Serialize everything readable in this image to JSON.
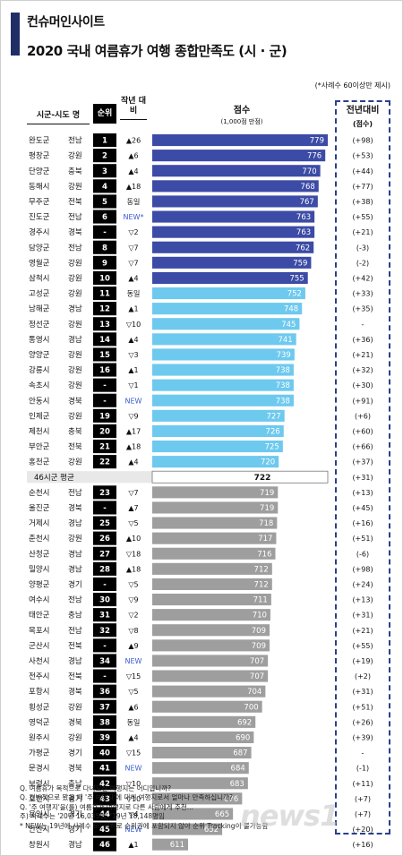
{
  "header": {
    "brand": "컨슈머인사이트",
    "title": "2020 국내 여름휴가 여행 종합만족도 (시 · 군)",
    "note": "(*사례수 60이상만 제시)",
    "col_region": "시군-시도 명",
    "col_rank": "순위",
    "col_prev": "작년 대비",
    "col_score": "점수",
    "col_score_sub": "(1,000점 만점)",
    "col_diff": "전년대비",
    "col_diff_sub": "(점수)"
  },
  "colors": {
    "accent": "#1f2f66",
    "top10": "#3c4ba6",
    "mid": "#6ec9ee",
    "low": "#9e9e9e",
    "avg_box": "#ffffff"
  },
  "chart_data": {
    "type": "bar",
    "title": "2020 국내 여름휴가 여행 종합만족도 (시 · 군)",
    "xlabel": "",
    "ylabel": "",
    "value_label": "점수 (1,000점 만점)",
    "rows": [
      {
        "city": "완도군",
        "prov": "전남",
        "rank": "1",
        "prev": "▲26",
        "score": 779,
        "diff": "(+98)",
        "tier": "top"
      },
      {
        "city": "평창군",
        "prov": "강원",
        "rank": "2",
        "prev": "▲6",
        "score": 776,
        "diff": "(+53)",
        "tier": "top"
      },
      {
        "city": "단양군",
        "prov": "충북",
        "rank": "3",
        "prev": "▲4",
        "score": 770,
        "diff": "(+44)",
        "tier": "top"
      },
      {
        "city": "동해시",
        "prov": "강원",
        "rank": "4",
        "prev": "▲18",
        "score": 768,
        "diff": "(+77)",
        "tier": "top"
      },
      {
        "city": "무주군",
        "prov": "전북",
        "rank": "5",
        "prev": "동일",
        "score": 767,
        "diff": "(+38)",
        "tier": "top"
      },
      {
        "city": "진도군",
        "prov": "전남",
        "rank": "6",
        "prev": "NEW*",
        "score": 763,
        "diff": "(+55)",
        "tier": "top"
      },
      {
        "city": "경주시",
        "prov": "경북",
        "rank": "-",
        "prev": "▽2",
        "score": 763,
        "diff": "(+21)",
        "tier": "top"
      },
      {
        "city": "담양군",
        "prov": "전남",
        "rank": "8",
        "prev": "▽7",
        "score": 762,
        "diff": "(-3)",
        "tier": "top"
      },
      {
        "city": "영월군",
        "prov": "강원",
        "rank": "9",
        "prev": "▽7",
        "score": 759,
        "diff": "(-2)",
        "tier": "top"
      },
      {
        "city": "삼척시",
        "prov": "강원",
        "rank": "10",
        "prev": "▲4",
        "score": 755,
        "diff": "(+42)",
        "tier": "top"
      },
      {
        "city": "고성군",
        "prov": "강원",
        "rank": "11",
        "prev": "동일",
        "score": 752,
        "diff": "(+33)",
        "tier": "mid"
      },
      {
        "city": "남해군",
        "prov": "경남",
        "rank": "12",
        "prev": "▲1",
        "score": 748,
        "diff": "(+35)",
        "tier": "mid"
      },
      {
        "city": "정선군",
        "prov": "강원",
        "rank": "13",
        "prev": "▽10",
        "score": 745,
        "diff": "-",
        "tier": "mid"
      },
      {
        "city": "통영시",
        "prov": "경남",
        "rank": "14",
        "prev": "▲4",
        "score": 741,
        "diff": "(+36)",
        "tier": "mid"
      },
      {
        "city": "양양군",
        "prov": "강원",
        "rank": "15",
        "prev": "▽3",
        "score": 739,
        "diff": "(+21)",
        "tier": "mid"
      },
      {
        "city": "강릉시",
        "prov": "강원",
        "rank": "16",
        "prev": "▲1",
        "score": 738,
        "diff": "(+32)",
        "tier": "mid"
      },
      {
        "city": "속초시",
        "prov": "강원",
        "rank": "-",
        "prev": "▽1",
        "score": 738,
        "diff": "(+30)",
        "tier": "mid"
      },
      {
        "city": "안동시",
        "prov": "경북",
        "rank": "-",
        "prev": "NEW",
        "score": 738,
        "diff": "(+91)",
        "tier": "mid"
      },
      {
        "city": "인제군",
        "prov": "강원",
        "rank": "19",
        "prev": "▽9",
        "score": 727,
        "diff": "(+6)",
        "tier": "mid"
      },
      {
        "city": "제천시",
        "prov": "충북",
        "rank": "20",
        "prev": "▲17",
        "score": 726,
        "diff": "(+60)",
        "tier": "mid"
      },
      {
        "city": "부안군",
        "prov": "전북",
        "rank": "21",
        "prev": "▲18",
        "score": 725,
        "diff": "(+66)",
        "tier": "mid"
      },
      {
        "city": "홍천군",
        "prov": "강원",
        "rank": "22",
        "prev": "▲4",
        "score": 720,
        "diff": "(+37)",
        "tier": "mid"
      },
      {
        "city": "46시군 평균",
        "prov": "",
        "rank": "",
        "prev": "",
        "score": 722,
        "diff": "(+31)",
        "tier": "avg"
      },
      {
        "city": "순천시",
        "prov": "전남",
        "rank": "23",
        "prev": "▽7",
        "score": 719,
        "diff": "(+13)",
        "tier": "low"
      },
      {
        "city": "울진군",
        "prov": "경북",
        "rank": "-",
        "prev": "▲7",
        "score": 719,
        "diff": "(+45)",
        "tier": "low"
      },
      {
        "city": "거제시",
        "prov": "경남",
        "rank": "25",
        "prev": "▽5",
        "score": 718,
        "diff": "(+16)",
        "tier": "low"
      },
      {
        "city": "춘천시",
        "prov": "강원",
        "rank": "26",
        "prev": "▲10",
        "score": 717,
        "diff": "(+51)",
        "tier": "low"
      },
      {
        "city": "산청군",
        "prov": "경남",
        "rank": "27",
        "prev": "▽18",
        "score": 716,
        "diff": "(-6)",
        "tier": "low"
      },
      {
        "city": "밀양시",
        "prov": "경남",
        "rank": "28",
        "prev": "▲18",
        "score": 712,
        "diff": "(+98)",
        "tier": "low"
      },
      {
        "city": "양평군",
        "prov": "경기",
        "rank": "-",
        "prev": "▽5",
        "score": 712,
        "diff": "(+24)",
        "tier": "low"
      },
      {
        "city": "여수시",
        "prov": "전남",
        "rank": "30",
        "prev": "▽9",
        "score": 711,
        "diff": "(+13)",
        "tier": "low"
      },
      {
        "city": "태안군",
        "prov": "충남",
        "rank": "31",
        "prev": "▽2",
        "score": 710,
        "diff": "(+31)",
        "tier": "low"
      },
      {
        "city": "목포시",
        "prov": "전남",
        "rank": "32",
        "prev": "▽8",
        "score": 709,
        "diff": "(+21)",
        "tier": "low"
      },
      {
        "city": "군산시",
        "prov": "전북",
        "rank": "-",
        "prev": "▲9",
        "score": 709,
        "diff": "(+55)",
        "tier": "low"
      },
      {
        "city": "사천시",
        "prov": "경남",
        "rank": "34",
        "prev": "NEW",
        "score": 707,
        "diff": "(+19)",
        "tier": "low"
      },
      {
        "city": "전주시",
        "prov": "전북",
        "rank": "-",
        "prev": "▽15",
        "score": 707,
        "diff": "(+2)",
        "tier": "low"
      },
      {
        "city": "포항시",
        "prov": "경북",
        "rank": "36",
        "prev": "▽5",
        "score": 704,
        "diff": "(+31)",
        "tier": "low"
      },
      {
        "city": "횡성군",
        "prov": "강원",
        "rank": "37",
        "prev": "▲6",
        "score": 700,
        "diff": "(+51)",
        "tier": "low"
      },
      {
        "city": "영덕군",
        "prov": "경북",
        "rank": "38",
        "prev": "동일",
        "score": 692,
        "diff": "(+26)",
        "tier": "low"
      },
      {
        "city": "원주시",
        "prov": "강원",
        "rank": "39",
        "prev": "▲4",
        "score": 690,
        "diff": "(+39)",
        "tier": "low"
      },
      {
        "city": "가평군",
        "prov": "경기",
        "rank": "40",
        "prev": "▽15",
        "score": 687,
        "diff": "-",
        "tier": "low"
      },
      {
        "city": "문경시",
        "prov": "경북",
        "rank": "41",
        "prev": "NEW",
        "score": 684,
        "diff": "(-1)",
        "tier": "low"
      },
      {
        "city": "보령시",
        "prov": "충남",
        "rank": "42",
        "prev": "▽10",
        "score": 683,
        "diff": "(+11)",
        "tier": "low"
      },
      {
        "city": "포천시",
        "prov": "경기",
        "rank": "43",
        "prev": "▽10",
        "score": 676,
        "diff": "(+7)",
        "tier": "low"
      },
      {
        "city": "용인시",
        "prov": "경기",
        "rank": "44",
        "prev": "▽4",
        "score": 665,
        "diff": "(+7)",
        "tier": "low"
      },
      {
        "city": "안산시",
        "prov": "경기",
        "rank": "45",
        "prev": "NEW",
        "score": 652,
        "diff": "(+20)",
        "tier": "low"
      },
      {
        "city": "창원시",
        "prov": "경남",
        "rank": "46",
        "prev": "▲1",
        "score": 611,
        "diff": "(+16)",
        "tier": "low"
      }
    ]
  },
  "footnotes": [
    "Q. 여름휴가 목적으로 다녀오신 여행지는 어디입니까?",
    "Q. 전반적으로 봤을 때 '주 여행지'에 대해 여행지로서 얼마나 만족하십니까?",
    "Q. '주 여행지'을(를) 여름휴가 여행지로 다른 사람에게 추천...",
    "주) 사례수는 '20년 16,035명, '19년 18,148명임",
    "* NEW는 19년에 사례수 60 이하로 순위권에 포함되지 않아 순위 Tracking이 불가능함"
  ],
  "watermark": "news1"
}
